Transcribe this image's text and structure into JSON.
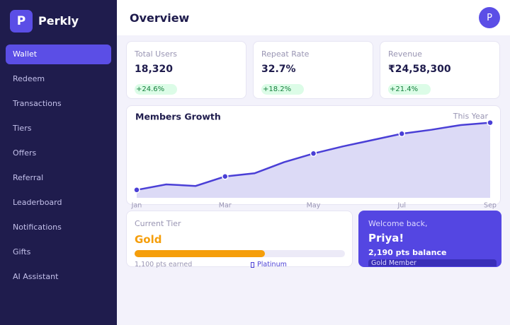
{
  "brand": {
    "logo": "P",
    "name": "Perkly"
  },
  "nav": [
    "Wallet",
    "Redeem",
    "Transactions",
    "Tiers",
    "Offers",
    "Referral",
    "Leaderboard",
    "Notifications",
    "Gifts",
    "AI Assistant"
  ],
  "header": {
    "title": "Overview",
    "avatar": "P"
  },
  "stats": [
    {
      "label": "Total Users",
      "value": "18,320",
      "change": "+24.6%"
    },
    {
      "label": "Repeat Rate",
      "value": "32.7%",
      "change": "+18.2%"
    },
    {
      "label": "Revenue",
      "value": "₹24,58,300",
      "change": "+21.4%"
    }
  ],
  "chart_data": {
    "type": "line",
    "title": "Members Growth",
    "period": "This Year",
    "categories": [
      "Jan",
      null,
      null,
      "Mar",
      null,
      null,
      "May",
      null,
      null,
      "Jul",
      null,
      null,
      "Sep"
    ],
    "values": [
      10,
      17,
      15,
      27,
      31,
      45,
      56,
      65,
      73,
      81,
      86,
      92,
      95
    ],
    "ylim": [
      0,
      100
    ],
    "color": "#4a3fd6"
  },
  "tier": {
    "label": "Current Tier",
    "name": "Gold",
    "progress": 0.62,
    "earned": "1,100 pts earned",
    "next": "Platinum"
  },
  "welcome": {
    "greeting": "Welcome back,",
    "name": "Priya!",
    "balance": "2,190 pts balance",
    "badge": "Gold Member"
  }
}
